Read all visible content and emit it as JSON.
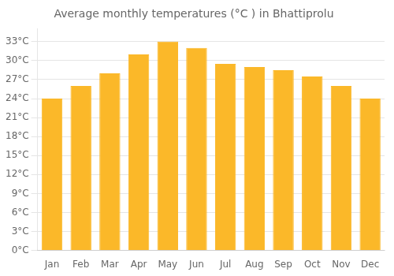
{
  "chart_data": {
    "type": "bar",
    "title": "Average monthly temperatures (°C ) in Bhattiprolu",
    "categories": [
      "Jan",
      "Feb",
      "Mar",
      "Apr",
      "May",
      "Jun",
      "Jul",
      "Aug",
      "Sep",
      "Oct",
      "Nov",
      "Dec"
    ],
    "values": [
      24.0,
      26.0,
      28.0,
      31.0,
      33.0,
      32.0,
      29.5,
      29.0,
      28.5,
      27.5,
      26.0,
      24.0
    ],
    "color": "#FBB829",
    "ylim": [
      0,
      35
    ],
    "yticks": [
      {
        "value": 0,
        "label": "0°C"
      },
      {
        "value": 3,
        "label": "3°C"
      },
      {
        "value": 6,
        "label": "6°C"
      },
      {
        "value": 9,
        "label": "9°C"
      },
      {
        "value": 12,
        "label": "12°C"
      },
      {
        "value": 15,
        "label": "15°C"
      },
      {
        "value": 18,
        "label": "18°C"
      },
      {
        "value": 21,
        "label": "21°C"
      },
      {
        "value": 24,
        "label": "24°C"
      },
      {
        "value": 27,
        "label": "27°C"
      },
      {
        "value": 30,
        "label": "30°C"
      },
      {
        "value": 33,
        "label": "33°C"
      }
    ],
    "grid": true
  }
}
